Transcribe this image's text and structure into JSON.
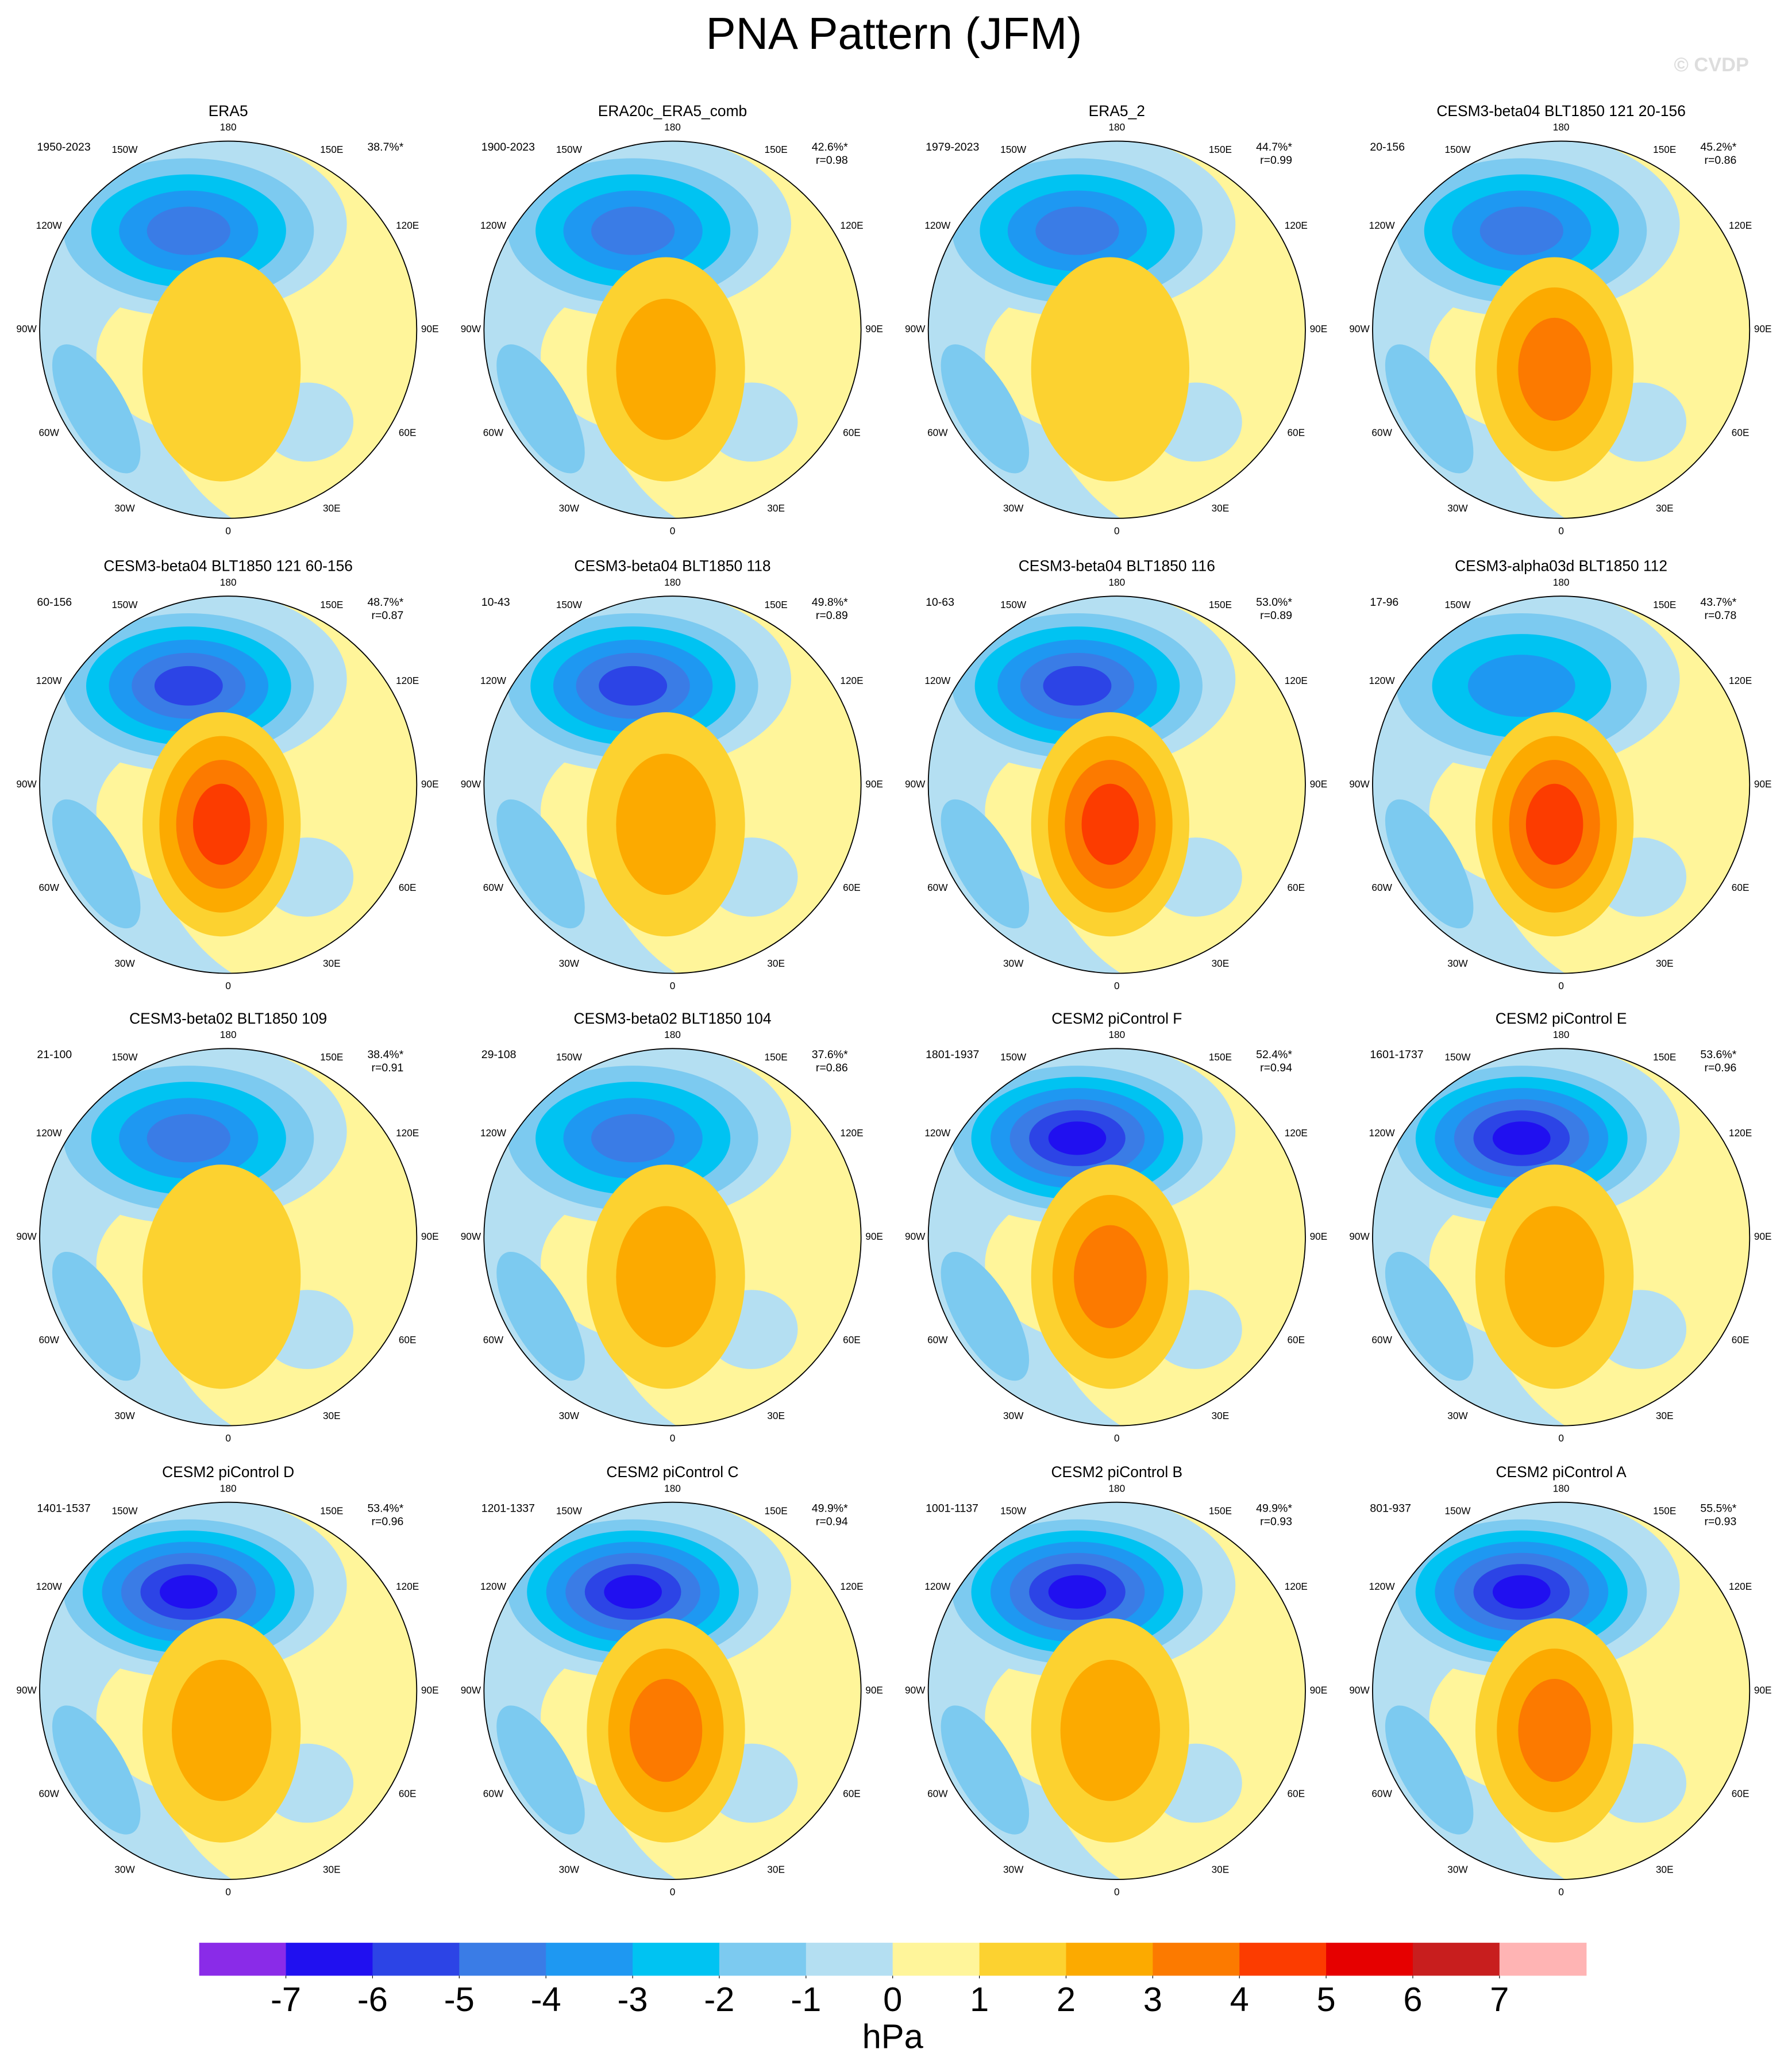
{
  "header": {
    "title": "PNA Pattern (JFM)",
    "watermark": "© CVDP"
  },
  "longitude_labels": [
    "180",
    "150E",
    "120E",
    "90E",
    "60E",
    "30E",
    "0",
    "30W",
    "60W",
    "90W",
    "120W",
    "150W"
  ],
  "panels": [
    {
      "title": "ERA5",
      "period": "1950-2023",
      "stats": [
        "38.7%*"
      ]
    },
    {
      "title": "ERA20c_ERA5_comb",
      "period": "1900-2023",
      "stats": [
        "42.6%*",
        "r=0.98"
      ]
    },
    {
      "title": "ERA5_2",
      "period": "1979-2023",
      "stats": [
        "44.7%*",
        "r=0.99"
      ]
    },
    {
      "title": "CESM3-beta04 BLT1850 121 20-156",
      "period": "20-156",
      "stats": [
        "45.2%*",
        "r=0.86"
      ]
    },
    {
      "title": "CESM3-beta04 BLT1850 121 60-156",
      "period": "60-156",
      "stats": [
        "48.7%*",
        "r=0.87"
      ]
    },
    {
      "title": "CESM3-beta04 BLT1850 118",
      "period": "10-43",
      "stats": [
        "49.8%*",
        "r=0.89"
      ]
    },
    {
      "title": "CESM3-beta04 BLT1850 116",
      "period": "10-63",
      "stats": [
        "53.0%*",
        "r=0.89"
      ]
    },
    {
      "title": "CESM3-alpha03d BLT1850 112",
      "period": "17-96",
      "stats": [
        "43.7%*",
        "r=0.78"
      ]
    },
    {
      "title": "CESM3-beta02 BLT1850 109",
      "period": "21-100",
      "stats": [
        "38.4%*",
        "r=0.91"
      ]
    },
    {
      "title": "CESM3-beta02 BLT1850 104",
      "period": "29-108",
      "stats": [
        "37.6%*",
        "r=0.86"
      ]
    },
    {
      "title": "CESM2 piControl F",
      "period": "1801-1937",
      "stats": [
        "52.4%*",
        "r=0.94"
      ]
    },
    {
      "title": "CESM2 piControl E",
      "period": "1601-1737",
      "stats": [
        "53.6%*",
        "r=0.96"
      ]
    },
    {
      "title": "CESM2 piControl D",
      "period": "1401-1537",
      "stats": [
        "53.4%*",
        "r=0.96"
      ]
    },
    {
      "title": "CESM2 piControl C",
      "period": "1201-1337",
      "stats": [
        "49.9%*",
        "r=0.94"
      ]
    },
    {
      "title": "CESM2 piControl B",
      "period": "1001-1137",
      "stats": [
        "49.9%*",
        "r=0.93"
      ]
    },
    {
      "title": "CESM2 piControl A",
      "period": "801-937",
      "stats": [
        "55.5%*",
        "r=0.93"
      ]
    }
  ],
  "colorbar": {
    "colors": [
      "#8a2be8",
      "#2010f0",
      "#2c44e6",
      "#3a7ce6",
      "#1e98f2",
      "#00c3f2",
      "#7ccaf0",
      "#b4dff2",
      "#fff59a",
      "#fcd230",
      "#fcaa00",
      "#fc7a00",
      "#fc3c00",
      "#e60000",
      "#c81e1e",
      "#ffb4b4"
    ],
    "ticks": [
      -7,
      -6,
      -5,
      -4,
      -3,
      -2,
      -1,
      0,
      1,
      2,
      3,
      4,
      5,
      6,
      7
    ],
    "unit": "hPa"
  }
}
